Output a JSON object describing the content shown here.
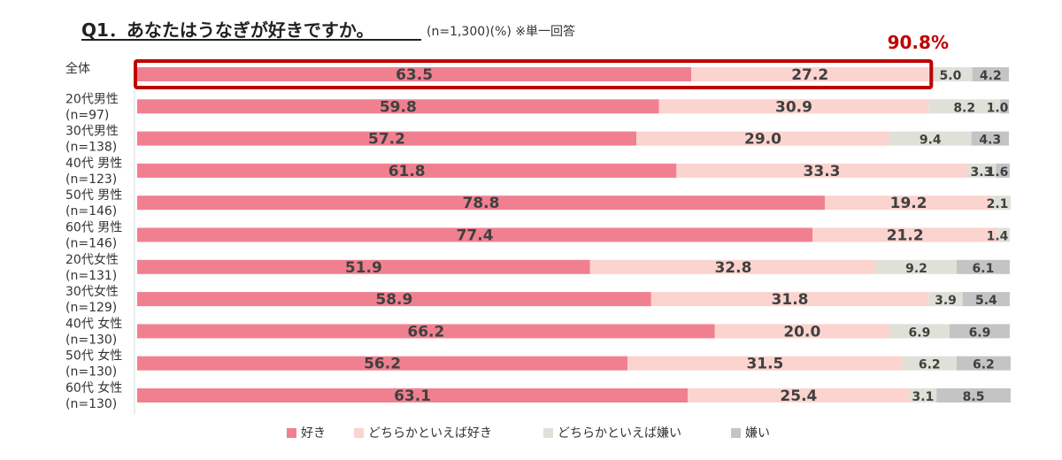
{
  "colors": {
    "like": "#f0808f",
    "somewhat_like": "#fbd3cf",
    "somewhat_dislike": "#e0e0d8",
    "dislike": "#c4c4c4",
    "highlight": "#c00000"
  },
  "chart_data": {
    "type": "bar",
    "orientation": "horizontal",
    "stacked": true,
    "title": "Q1．あなたはうなぎが好きですか。",
    "subtitle": "(n=1,300)(%) ※単一回答",
    "categories": [
      [
        "全体"
      ],
      [
        "20代男性",
        "(n=97)"
      ],
      [
        "30代男性",
        "(n=138)"
      ],
      [
        "40代 男性",
        "(n=123)"
      ],
      [
        "50代 男性",
        "(n=146)"
      ],
      [
        "60代 男性",
        "(n=146)"
      ],
      [
        "20代女性",
        "(n=131)"
      ],
      [
        "30代女性",
        "(n=129)"
      ],
      [
        "40代 女性",
        "(n=130)"
      ],
      [
        "50代 女性",
        "(n=130)"
      ],
      [
        "60代 女性",
        "(n=130)"
      ]
    ],
    "series": [
      {
        "name": "好き",
        "values": [
          63.5,
          59.8,
          57.2,
          61.8,
          78.8,
          77.4,
          51.9,
          58.9,
          66.2,
          56.2,
          63.1
        ]
      },
      {
        "name": "どちらかといえば好き",
        "values": [
          27.2,
          30.9,
          29.0,
          33.3,
          19.2,
          21.2,
          32.8,
          31.8,
          20.0,
          31.5,
          25.4
        ]
      },
      {
        "name": "どちらかといえば嫌い",
        "values": [
          5.0,
          8.2,
          9.4,
          3.3,
          2.1,
          1.4,
          9.2,
          3.9,
          6.9,
          6.2,
          3.1
        ]
      },
      {
        "name": "嫌い",
        "values": [
          4.2,
          1.0,
          4.3,
          1.6,
          null,
          null,
          6.1,
          5.4,
          6.9,
          6.2,
          8.5
        ]
      }
    ],
    "xlim": [
      0,
      100
    ],
    "legend_position": "bottom",
    "highlight": {
      "category_index": 0,
      "label": "90.8%"
    }
  }
}
